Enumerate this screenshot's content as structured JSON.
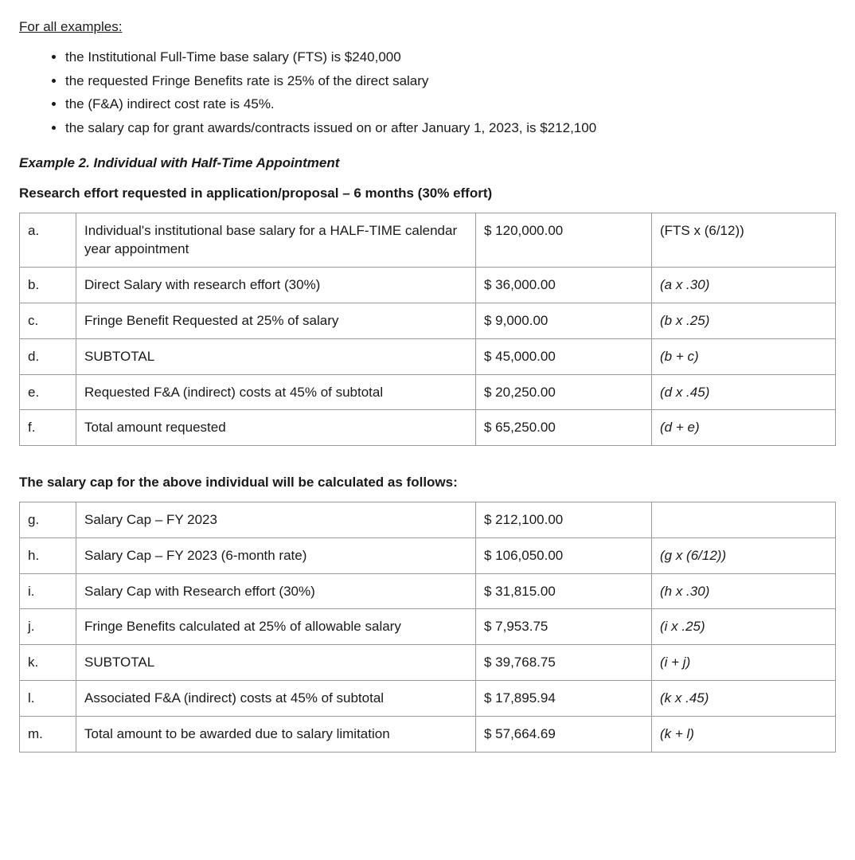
{
  "intro_heading": "For all examples:",
  "assumptions": [
    "the Institutional Full-Time base salary (FTS) is $240,000",
    "the requested Fringe Benefits rate is 25% of the direct salary",
    "the (F&A) indirect cost rate is 45%.",
    "the salary cap for grant awards/contracts issued on or after January 1, 2023, is $212,100"
  ],
  "example_title": "Example 2. Individual with Half-Time Appointment",
  "subhead1": "Research effort requested in application/proposal – 6 months (30% effort)",
  "table1": {
    "rows": [
      {
        "id": "a.",
        "desc": "Individual's institutional base salary for a HALF-TIME calendar year appointment",
        "amount": "$ 120,000.00",
        "formula": "(FTS x (6/12))",
        "italic": false
      },
      {
        "id": "b.",
        "desc": "Direct Salary with research effort (30%)",
        "amount": "$ 36,000.00",
        "formula": "(a x .30)",
        "italic": true
      },
      {
        "id": "c.",
        "desc": "Fringe Benefit Requested at 25% of salary",
        "amount": "$ 9,000.00",
        "formula": "(b x .25)",
        "italic": true
      },
      {
        "id": "d.",
        "desc": "SUBTOTAL",
        "amount": "$ 45,000.00",
        "formula": "(b + c)",
        "italic": true
      },
      {
        "id": "e.",
        "desc": "Requested F&A (indirect) costs at 45% of subtotal",
        "amount": "$ 20,250.00",
        "formula": "(d x .45)",
        "italic": true
      },
      {
        "id": "f.",
        "desc": "Total amount requested",
        "amount": "$ 65,250.00",
        "formula": "(d + e)",
        "italic": true
      }
    ]
  },
  "subhead2": "The salary cap for the above individual will be calculated as follows:",
  "table2": {
    "rows": [
      {
        "id": "g.",
        "desc": "Salary Cap – FY 2023",
        "amount": "$ 212,100.00",
        "formula": "",
        "italic": false
      },
      {
        "id": "h.",
        "desc": "Salary Cap – FY 2023 (6-month rate)",
        "amount": "$ 106,050.00",
        "formula": "(g x (6/12))",
        "italic": true
      },
      {
        "id": "i.",
        "desc": "Salary Cap with Research effort (30%)",
        "amount": "$ 31,815.00",
        "formula": "(h x .30)",
        "italic": true
      },
      {
        "id": "j.",
        "desc": "Fringe Benefits calculated at 25% of allowable salary",
        "amount": "$ 7,953.75",
        "formula": "(i x .25)",
        "italic": true
      },
      {
        "id": "k.",
        "desc": "SUBTOTAL",
        "amount": "$ 39,768.75",
        "formula": "(i + j)",
        "italic": true
      },
      {
        "id": "l.",
        "desc": "Associated F&A (indirect) costs at 45% of subtotal",
        "amount": "$ 17,895.94",
        "formula": "(k x .45)",
        "italic": true
      },
      {
        "id": "m.",
        "desc": "Total amount to be awarded due to salary limitation",
        "amount": "$ 57,664.69",
        "formula": "(k + l)",
        "italic": true
      }
    ]
  },
  "colors": {
    "text": "#1a1a1a",
    "border": "#9a9a9a",
    "background": "#ffffff"
  }
}
